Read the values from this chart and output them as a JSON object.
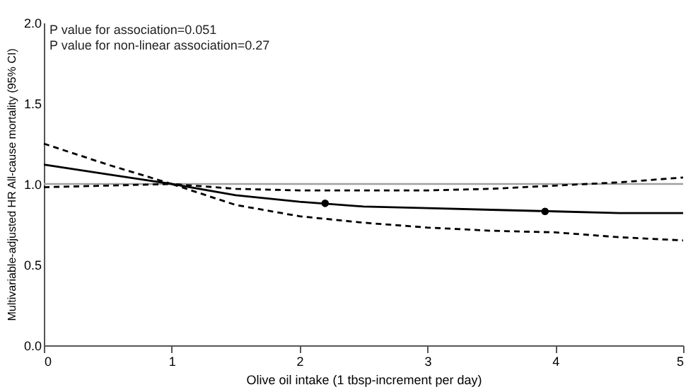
{
  "chart_data": {
    "type": "line",
    "xlabel": "Olive oil intake (1 tbsp-increment per day)",
    "ylabel": "Multivariable-adjusted HR All-cause mortality (95% CI)",
    "x": [
      0,
      0.5,
      1,
      1.5,
      2,
      2.5,
      3,
      3.5,
      4,
      4.5,
      5
    ],
    "series": [
      {
        "color": "#000000",
        "line_style": "solid",
        "values": [
          1.12,
          1.06,
          1.0,
          0.93,
          0.89,
          0.86,
          0.85,
          0.84,
          0.83,
          0.82,
          0.82
        ]
      },
      {
        "color": "#000000",
        "line_style": "dashed",
        "values": [
          1.25,
          1.12,
          1.0,
          0.97,
          0.96,
          0.96,
          0.96,
          0.97,
          0.99,
          1.01,
          1.04
        ]
      },
      {
        "color": "#000000",
        "line_style": "dashed",
        "values": [
          0.98,
          0.99,
          1.0,
          0.87,
          0.8,
          0.76,
          0.73,
          0.71,
          0.7,
          0.67,
          0.65
        ]
      },
      {
        "type": "scatter",
        "color": "#000000",
        "marker": "circle",
        "x": [
          2.2,
          3.92
        ],
        "values": [
          0.88,
          0.83
        ]
      }
    ],
    "xlim": [
      0,
      5
    ],
    "xticks": [
      0,
      1,
      2,
      3,
      4,
      5
    ],
    "ylim": [
      0,
      2
    ],
    "yticks": [
      {
        "value": 0,
        "label": "0.0"
      },
      {
        "value": 0.5,
        "label": "0.5"
      },
      {
        "value": 1,
        "label": "1.0"
      },
      {
        "value": 1.5,
        "label": "1.5"
      },
      {
        "value": 2,
        "label": "2.0"
      }
    ],
    "ref_lines": [
      {
        "axis": "y",
        "value": 1,
        "color": "#a0a0a0",
        "line_style": "solid"
      }
    ],
    "grid": false,
    "annotations": [
      "P value  for association=0.051",
      "P value  for non-linear  association=0.27"
    ]
  }
}
